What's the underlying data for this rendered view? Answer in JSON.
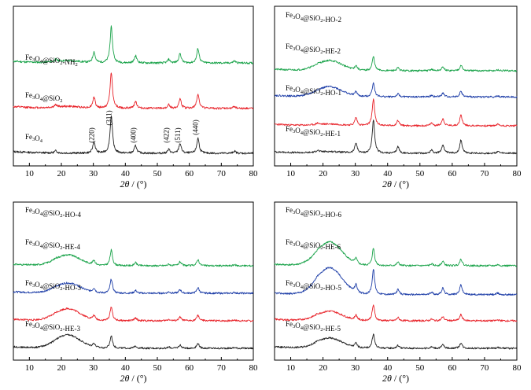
{
  "chart_data": [
    {
      "type": "line",
      "xlabel_symbol": "2θ",
      "xlabel_unit": " / (°)",
      "xlim": [
        5,
        80
      ],
      "xticks": [
        10,
        20,
        30,
        40,
        50,
        60,
        70,
        80
      ],
      "peak_labels": [
        {
          "x": 30.2,
          "label": "(220)"
        },
        {
          "x": 35.6,
          "label": "(311)"
        },
        {
          "x": 43.2,
          "label": "(400)"
        },
        {
          "x": 53.6,
          "label": "(422)"
        },
        {
          "x": 57.1,
          "label": "(511)"
        },
        {
          "x": 62.7,
          "label": "(440)"
        }
      ],
      "series": [
        {
          "name": "Fe3O4@SiO2-NH2",
          "label_main": "Fe",
          "label_sub1": "3",
          "label_mid": "O",
          "label_sub2": "4",
          "label_mid2": "@SiO",
          "label_sub3": "2",
          "label_end": "-NH",
          "label_sub4": "2",
          "color": "#1aa34a",
          "offset": 2.05,
          "amorph": 0.06,
          "cryst": 1.0,
          "seed": 11
        },
        {
          "name": "Fe3O4@SiO2",
          "label_main": "Fe",
          "label_sub1": "3",
          "label_mid": "O",
          "label_sub2": "4",
          "label_mid2": "@SiO",
          "label_sub3": "2",
          "label_end": "",
          "label_sub4": "",
          "color": "#e8232a",
          "offset": 1.02,
          "amorph": 0.05,
          "cryst": 1.0,
          "seed": 12
        },
        {
          "name": "Fe3O4",
          "label_main": "Fe",
          "label_sub1": "3",
          "label_mid": "O",
          "label_sub2": "4",
          "label_mid2": "",
          "label_sub3": "",
          "label_end": "",
          "label_sub4": "",
          "color": "#222222",
          "offset": 0.0,
          "amorph": 0.0,
          "cryst": 1.05,
          "seed": 13
        }
      ]
    },
    {
      "type": "line",
      "xlabel_symbol": "2θ",
      "xlabel_unit": " / (°)",
      "xlim": [
        5,
        80
      ],
      "xticks": [
        10,
        20,
        30,
        40,
        50,
        60,
        70,
        80
      ],
      "series": [
        {
          "name": "Fe3O4@SiO2-HO-2",
          "label_main": "Fe",
          "label_sub1": "3",
          "label_mid": "O",
          "label_sub2": "4",
          "label_mid2": "@SiO",
          "label_sub3": "2",
          "label_end": "-HO-2",
          "label_sub4": "",
          "color": "#1aa34a",
          "offset": 3.0,
          "amorph": 0.32,
          "cryst": 0.45,
          "seed": 21
        },
        {
          "name": "Fe3O4@SiO2-HE-2",
          "label_main": "Fe",
          "label_sub1": "3",
          "label_mid": "O",
          "label_sub2": "4",
          "label_mid2": "@SiO",
          "label_sub3": "2",
          "label_end": "-HE-2",
          "label_sub4": "",
          "color": "#1f3fa8",
          "offset": 2.05,
          "amorph": 0.32,
          "cryst": 0.45,
          "seed": 22
        },
        {
          "name": "Fe3O4@SiO2-HO-1",
          "label_main": "Fe",
          "label_sub1": "3",
          "label_mid": "O",
          "label_sub2": "4",
          "label_mid2": "@SiO",
          "label_sub3": "2",
          "label_end": "-HO-1",
          "label_sub4": "",
          "color": "#e8232a",
          "offset": 1.0,
          "amorph": 0.05,
          "cryst": 0.85,
          "seed": 23
        },
        {
          "name": "Fe3O4@SiO2-HE-1",
          "label_main": "Fe",
          "label_sub1": "3",
          "label_mid": "O",
          "label_sub2": "4",
          "label_mid2": "@SiO",
          "label_sub3": "2",
          "label_end": "-HE-1",
          "label_sub4": "",
          "color": "#222222",
          "offset": 0.0,
          "amorph": 0.05,
          "cryst": 1.05,
          "seed": 24
        }
      ]
    },
    {
      "type": "line",
      "xlabel_symbol": "2θ",
      "xlabel_unit": " / (°)",
      "xlim": [
        5,
        80
      ],
      "xticks": [
        10,
        20,
        30,
        40,
        50,
        60,
        70,
        80
      ],
      "series": [
        {
          "name": "Fe3O4@SiO2-HO-4",
          "label_main": "Fe",
          "label_sub1": "3",
          "label_mid": "O",
          "label_sub2": "4",
          "label_mid2": "@SiO",
          "label_sub3": "2",
          "label_end": "-HO-4",
          "label_sub4": "",
          "color": "#1aa34a",
          "offset": 3.0,
          "amorph": 0.34,
          "cryst": 0.5,
          "seed": 31
        },
        {
          "name": "Fe3O4@SiO2-HE-4",
          "label_main": "Fe",
          "label_sub1": "3",
          "label_mid": "O",
          "label_sub2": "4",
          "label_mid2": "@SiO",
          "label_sub3": "2",
          "label_end": "-HE-4",
          "label_sub4": "",
          "color": "#1f3fa8",
          "offset": 2.0,
          "amorph": 0.32,
          "cryst": 0.45,
          "seed": 32
        },
        {
          "name": "Fe3O4@SiO2-HO-3",
          "label_main": "Fe",
          "label_sub1": "3",
          "label_mid": "O",
          "label_sub2": "4",
          "label_mid2": "@SiO",
          "label_sub3": "2",
          "label_end": "-HO-3",
          "label_sub4": "",
          "color": "#e8232a",
          "offset": 1.0,
          "amorph": 0.38,
          "cryst": 0.45,
          "seed": 33
        },
        {
          "name": "Fe3O4@SiO2-HE-3",
          "label_main": "Fe",
          "label_sub1": "3",
          "label_mid": "O",
          "label_sub2": "4",
          "label_mid2": "@SiO",
          "label_sub3": "2",
          "label_end": "-HE-3",
          "label_sub4": "",
          "color": "#222222",
          "offset": 0.0,
          "amorph": 0.42,
          "cryst": 0.4,
          "seed": 34
        }
      ]
    },
    {
      "type": "line",
      "xlabel_symbol": "2θ",
      "xlabel_unit": " / (°)",
      "xlim": [
        5,
        80
      ],
      "xticks": [
        10,
        20,
        30,
        40,
        50,
        60,
        70,
        80
      ],
      "series": [
        {
          "name": "Fe3O4@SiO2-HO-6",
          "label_main": "Fe",
          "label_sub1": "3",
          "label_mid": "O",
          "label_sub2": "4",
          "label_mid2": "@SiO",
          "label_sub3": "2",
          "label_end": "-HO-6",
          "label_sub4": "",
          "color": "#1aa34a",
          "offset": 3.0,
          "amorph": 0.75,
          "cryst": 0.55,
          "seed": 41
        },
        {
          "name": "Fe3O4@SiO2-HE-6",
          "label_main": "Fe",
          "label_sub1": "3",
          "label_mid": "O",
          "label_sub2": "4",
          "label_mid2": "@SiO",
          "label_sub3": "2",
          "label_end": "-HE-6",
          "label_sub4": "",
          "color": "#1f3fa8",
          "offset": 1.95,
          "amorph": 0.85,
          "cryst": 0.8,
          "seed": 42
        },
        {
          "name": "Fe3O4@SiO2-HO-5",
          "label_main": "Fe",
          "label_sub1": "3",
          "label_mid": "O",
          "label_sub2": "4",
          "label_mid2": "@SiO",
          "label_sub3": "2",
          "label_end": "-HO-5",
          "label_sub4": "",
          "color": "#e8232a",
          "offset": 1.0,
          "amorph": 0.3,
          "cryst": 0.5,
          "seed": 43
        },
        {
          "name": "Fe3O4@SiO2-HE-5",
          "label_main": "Fe",
          "label_sub1": "3",
          "label_mid": "O",
          "label_sub2": "4",
          "label_mid2": "@SiO",
          "label_sub3": "2",
          "label_end": "-HE-5",
          "label_sub4": "",
          "color": "#222222",
          "offset": 0.0,
          "amorph": 0.32,
          "cryst": 0.45,
          "seed": 44
        }
      ]
    }
  ],
  "diffraction": {
    "peak_positions": [
      18.3,
      30.2,
      35.6,
      43.2,
      53.6,
      57.1,
      62.7,
      74.1
    ],
    "peak_heights": [
      0.06,
      0.3,
      1.0,
      0.2,
      0.1,
      0.26,
      0.4,
      0.06
    ],
    "amorphous_center": 22
  }
}
